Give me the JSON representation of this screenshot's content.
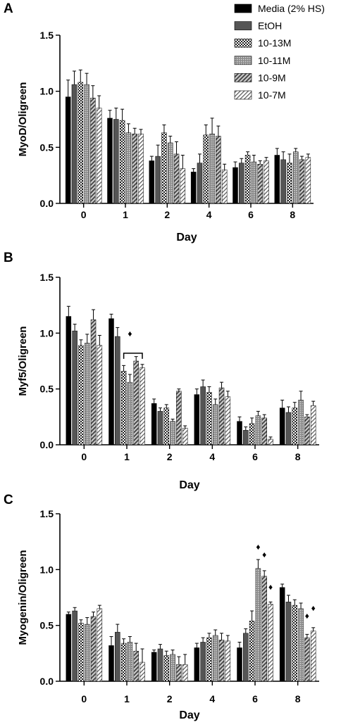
{
  "legend": [
    {
      "label": "Media (2% HS)",
      "pattern": "solid-black"
    },
    {
      "label": "EtOH",
      "pattern": "solid-dark-gray"
    },
    {
      "label": "10-13M",
      "pattern": "checker"
    },
    {
      "label": "10-11M",
      "pattern": "dots"
    },
    {
      "label": "10-9M",
      "pattern": "diag-dark"
    },
    {
      "label": "10-7M",
      "pattern": "diag-light"
    }
  ],
  "chart_data": [
    {
      "type": "bar",
      "panel_label": "A",
      "xlabel": "Day",
      "ylabel": "MyoD/Oligreen",
      "ylim": [
        0,
        1.5
      ],
      "yticks": [
        "0.0",
        "0.5",
        "1.0",
        "1.5"
      ],
      "categories": [
        "0",
        "1",
        "2",
        "4",
        "6",
        "8"
      ],
      "series": [
        {
          "name": "Media (2% HS)",
          "values": [
            0.95,
            0.76,
            0.38,
            0.28,
            0.32,
            0.43
          ],
          "errors": [
            0.15,
            0.07,
            0.04,
            0.03,
            0.05,
            0.06
          ]
        },
        {
          "name": "EtOH",
          "values": [
            1.06,
            0.75,
            0.42,
            0.36,
            0.36,
            0.39
          ],
          "errors": [
            0.12,
            0.1,
            0.1,
            0.08,
            0.04,
            0.07
          ]
        },
        {
          "name": "10-13M",
          "values": [
            1.08,
            0.74,
            0.63,
            0.61,
            0.43,
            0.36
          ],
          "errors": [
            0.11,
            0.1,
            0.07,
            0.09,
            0.03,
            0.08
          ]
        },
        {
          "name": "10-11M",
          "values": [
            1.06,
            0.63,
            0.54,
            0.62,
            0.37,
            0.46
          ],
          "errors": [
            0.1,
            0.08,
            0.06,
            0.14,
            0.06,
            0.03
          ]
        },
        {
          "name": "10-9M",
          "values": [
            0.94,
            0.62,
            0.44,
            0.6,
            0.35,
            0.39
          ],
          "errors": [
            0.11,
            0.05,
            0.11,
            0.09,
            0.03,
            0.03
          ]
        },
        {
          "name": "10-7M",
          "values": [
            0.85,
            0.62,
            0.31,
            0.3,
            0.38,
            0.41
          ],
          "errors": [
            0.11,
            0.04,
            0.12,
            0.05,
            0.03,
            0.03
          ]
        }
      ],
      "annotations": []
    },
    {
      "type": "bar",
      "panel_label": "B",
      "xlabel": "Day",
      "ylabel": "Myf5/Oligreen",
      "ylim": [
        0,
        1.5
      ],
      "yticks": [
        "0.0",
        "0.5",
        "1.0",
        "1.5"
      ],
      "categories": [
        "0",
        "1",
        "2",
        "4",
        "6",
        "8"
      ],
      "series": [
        {
          "name": "Media (2% HS)",
          "values": [
            1.15,
            1.13,
            0.37,
            0.45,
            0.21,
            0.33
          ],
          "errors": [
            0.09,
            0.04,
            0.04,
            0.05,
            0.04,
            0.07
          ]
        },
        {
          "name": "EtOH",
          "values": [
            1.02,
            0.97,
            0.3,
            0.52,
            0.13,
            0.29
          ],
          "errors": [
            0.06,
            0.08,
            0.03,
            0.06,
            0.03,
            0.05
          ]
        },
        {
          "name": "10-13M",
          "values": [
            0.89,
            0.66,
            0.33,
            0.47,
            0.19,
            0.33
          ],
          "errors": [
            0.05,
            0.05,
            0.03,
            0.05,
            0.05,
            0.05
          ]
        },
        {
          "name": "10-11M",
          "values": [
            0.91,
            0.56,
            0.21,
            0.36,
            0.26,
            0.4
          ],
          "errors": [
            0.08,
            0.07,
            0.02,
            0.05,
            0.04,
            0.08
          ]
        },
        {
          "name": "10-9M",
          "values": [
            1.12,
            0.75,
            0.48,
            0.51,
            0.24,
            0.25
          ],
          "errors": [
            0.09,
            0.04,
            0.02,
            0.05,
            0.03,
            0.02
          ]
        },
        {
          "name": "10-7M",
          "values": [
            0.89,
            0.69,
            0.15,
            0.43,
            0.05,
            0.35
          ],
          "errors": [
            0.09,
            0.03,
            0.02,
            0.05,
            0.02,
            0.04
          ]
        }
      ],
      "annotations": [
        {
          "type": "bracket",
          "category": "1",
          "from_series": 2,
          "to_series": 5,
          "level": 0.82
        },
        {
          "type": "marker",
          "symbol": "♦",
          "category": "1",
          "series": 3,
          "level": 0.97
        }
      ]
    },
    {
      "type": "bar",
      "panel_label": "C",
      "xlabel": "Day",
      "ylabel": "Myogenin/Oligreen",
      "ylim": [
        0,
        1.5
      ],
      "yticks": [
        "0.0",
        "0.5",
        "1.0",
        "1.5"
      ],
      "categories": [
        "0",
        "1",
        "2",
        "4",
        "6",
        "8"
      ],
      "series": [
        {
          "name": "Media (2% HS)",
          "values": [
            0.6,
            0.32,
            0.26,
            0.3,
            0.3,
            0.84
          ],
          "errors": [
            0.02,
            0.08,
            0.02,
            0.04,
            0.05,
            0.03
          ]
        },
        {
          "name": "EtOH",
          "values": [
            0.63,
            0.44,
            0.29,
            0.35,
            0.43,
            0.71
          ],
          "errors": [
            0.03,
            0.07,
            0.04,
            0.04,
            0.04,
            0.06
          ]
        },
        {
          "name": "10-13M",
          "values": [
            0.52,
            0.34,
            0.23,
            0.39,
            0.54,
            0.68
          ],
          "errors": [
            0.03,
            0.04,
            0.04,
            0.04,
            0.09,
            0.05
          ]
        },
        {
          "name": "10-11M",
          "values": [
            0.51,
            0.35,
            0.24,
            0.41,
            1.01,
            0.65
          ],
          "errors": [
            0.06,
            0.05,
            0.04,
            0.05,
            0.08,
            0.05
          ]
        },
        {
          "name": "10-9M",
          "values": [
            0.58,
            0.27,
            0.15,
            0.37,
            0.94,
            0.39
          ],
          "errors": [
            0.04,
            0.07,
            0.07,
            0.06,
            0.05,
            0.03
          ]
        },
        {
          "name": "10-7M",
          "values": [
            0.65,
            0.17,
            0.15,
            0.36,
            0.69,
            0.45
          ],
          "errors": [
            0.03,
            0.12,
            0.09,
            0.05,
            0.02,
            0.03
          ]
        }
      ],
      "annotations": [
        {
          "type": "marker",
          "symbol": "♦",
          "category": "6",
          "series": 3,
          "level": 1.18
        },
        {
          "type": "marker",
          "symbol": "♦",
          "category": "6",
          "series": 4,
          "level": 1.11
        },
        {
          "type": "marker",
          "symbol": "♦",
          "category": "6",
          "series": 5,
          "level": 0.82
        },
        {
          "type": "marker",
          "symbol": "♦",
          "category": "8",
          "series": 4,
          "level": 0.56
        },
        {
          "type": "marker",
          "symbol": "♦",
          "category": "8",
          "series": 5,
          "level": 0.63
        }
      ]
    }
  ]
}
